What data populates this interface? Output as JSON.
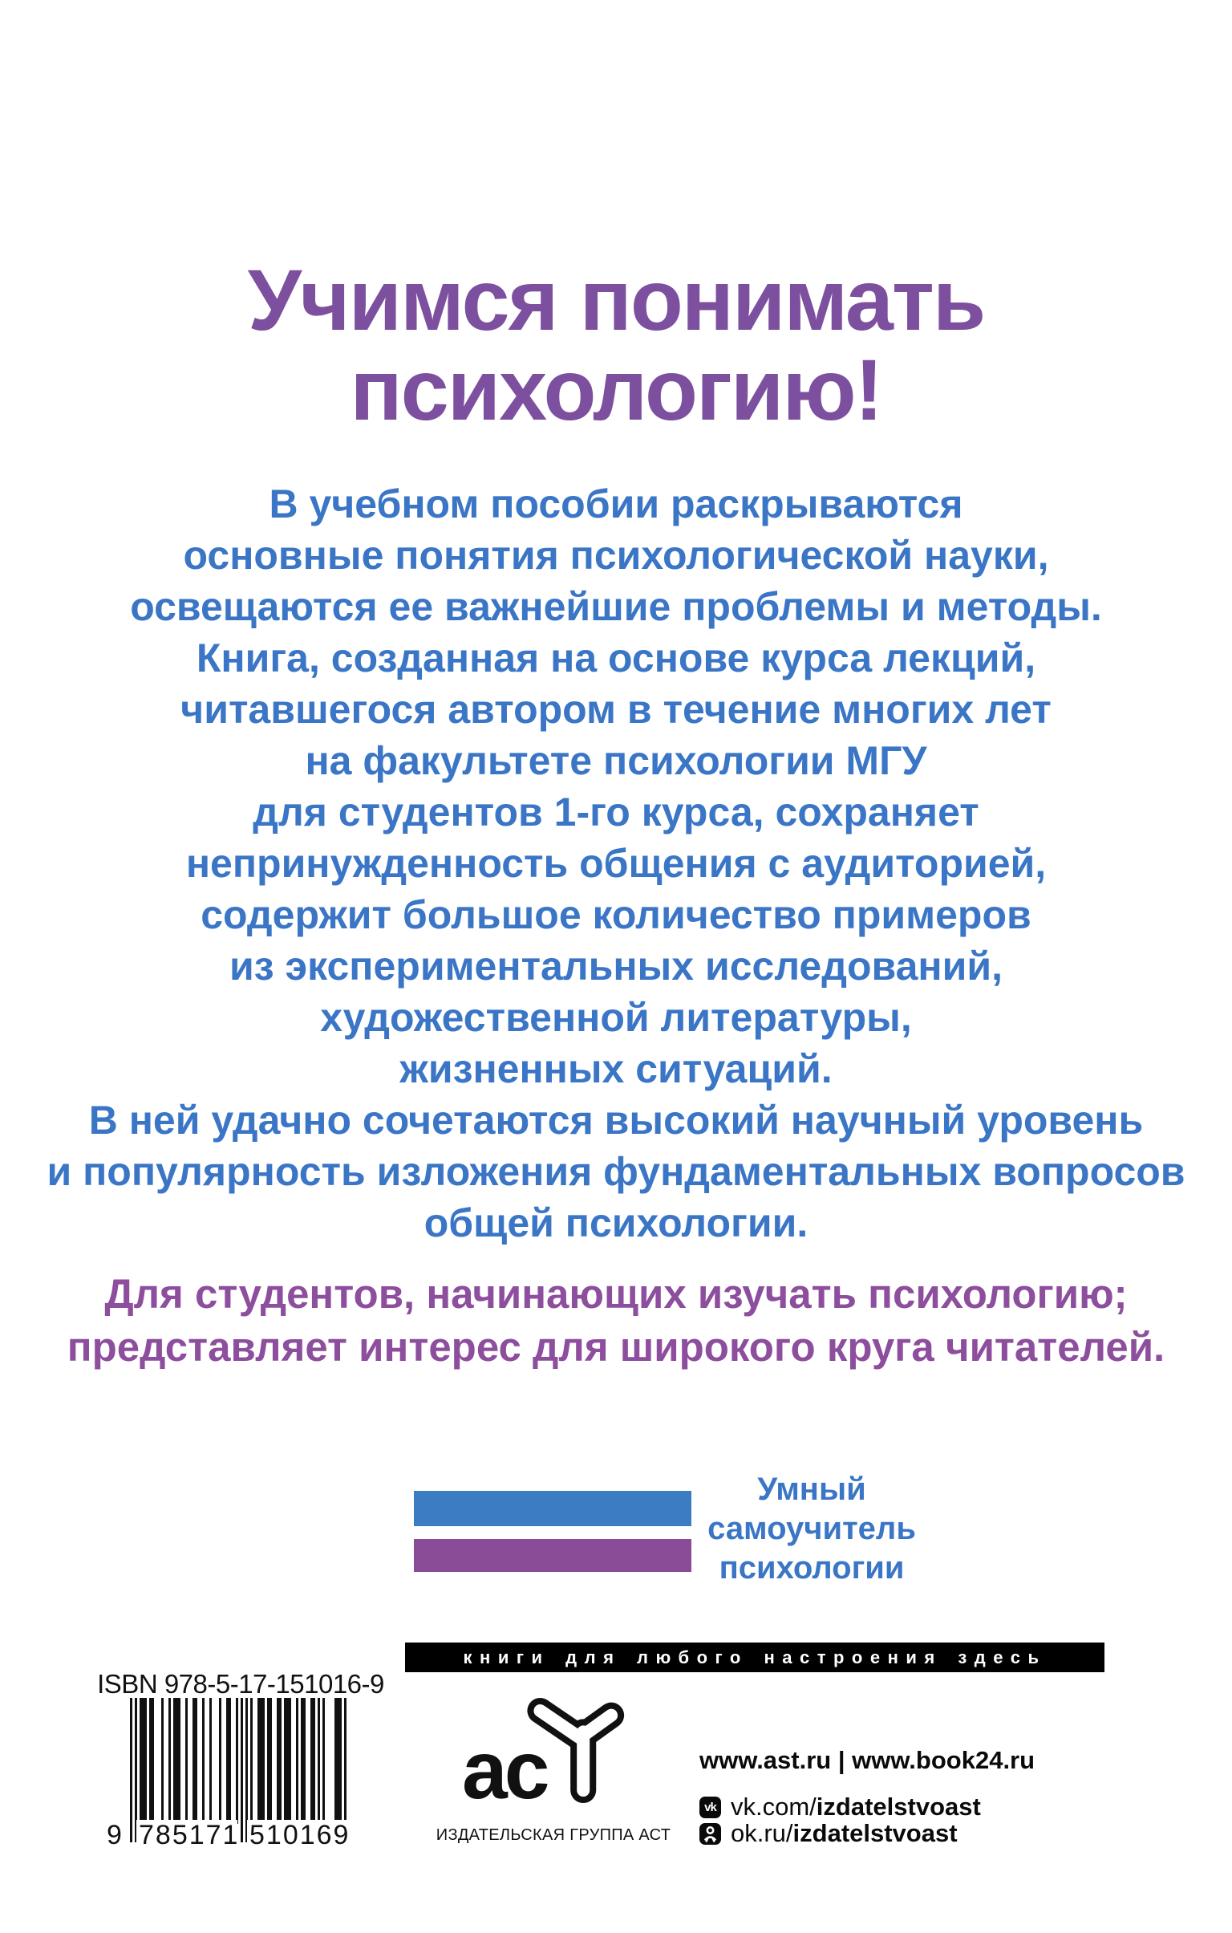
{
  "heading": {
    "lines": [
      "Учимся понимать",
      "психологию!"
    ]
  },
  "description": {
    "lines": [
      "В учебном пособии раскрываются",
      "основные понятия психологической науки,",
      "освещаются ее важнейшие проблемы и методы.",
      "Книга, созданная на основе курса лекций,",
      "читавшегося автором в течение многих лет",
      "на факультете психологии МГУ",
      "для студентов 1-го курса, сохраняет",
      "непринужденность общения с аудиторией,",
      "содержит большое количество примеров",
      "из экспериментальных исследований,",
      "художественной литературы,",
      "жизненных ситуаций.",
      "В ней удачно сочетаются высокий научный уровень",
      "и популярность изложения фундаментальных вопросов",
      "общей психологии."
    ]
  },
  "audience": {
    "lines": [
      "Для студентов, начинающих изучать психологию;",
      "представляет интерес для широкого круга читателей."
    ]
  },
  "series_badge": {
    "lines": [
      "Умный",
      "самоучитель",
      "психологии"
    ],
    "bar_blue_color": "#3c7cc2",
    "bar_purple_color": "#8a4b97"
  },
  "promo_bar": {
    "text": "книги для любого настроения здесь"
  },
  "isbn": {
    "label": "ISBN 978-5-17-151016-9",
    "ean": "9785171510169",
    "digit_left": "9",
    "digits_mid": "785171",
    "digits_right": "510169"
  },
  "publisher": {
    "logo_letters": "ас",
    "caption": "ИЗДАТЕЛЬСКАЯ ГРУППА АСТ"
  },
  "links": {
    "websites": "www.ast.ru | www.book24.ru",
    "vk_icon_label": "vk",
    "vk_prefix": "vk.com/",
    "vk_handle": "izdatelstvoast",
    "ok_prefix": "ok.ru/",
    "ok_handle": "izdatelstvoast"
  },
  "colors": {
    "heading_purple": "#7d509f",
    "body_blue": "#3b76c6",
    "audience_purple": "#8d4e9e",
    "promo_black": "#000000"
  }
}
